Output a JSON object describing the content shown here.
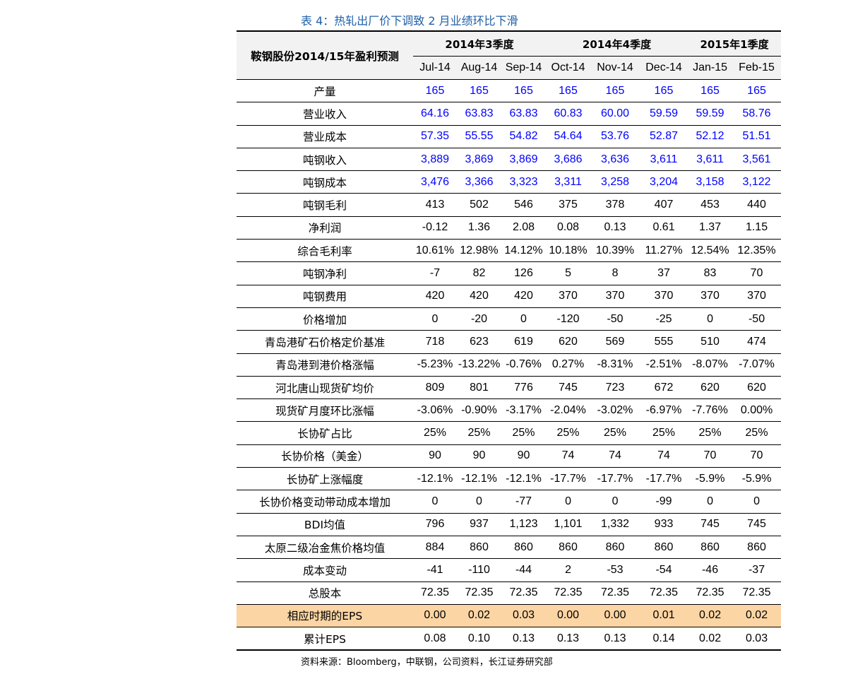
{
  "title": "表 4：热轧出厂价下调致 2 月业绩环比下滑",
  "table": {
    "corner": "鞍钢股份2014/15年盈利预测",
    "groups": [
      "2014年3季度",
      "2014年4季度",
      "2015年1季度"
    ],
    "months": [
      "Jul-14",
      "Aug-14",
      "Sep-14",
      "Oct-14",
      "Nov-14",
      "Dec-14",
      "Jan-15",
      "Feb-15"
    ],
    "rows": [
      {
        "label": "产量",
        "values": [
          "165",
          "165",
          "165",
          "165",
          "165",
          "165",
          "165",
          "165"
        ]
      },
      {
        "label": "营业收入",
        "values": [
          "64.16",
          "63.83",
          "63.83",
          "60.83",
          "60.00",
          "59.59",
          "59.59",
          "58.76"
        ]
      },
      {
        "label": "营业成本",
        "values": [
          "57.35",
          "55.55",
          "54.82",
          "54.64",
          "53.76",
          "52.87",
          "52.12",
          "51.51"
        ]
      },
      {
        "label": "吨钢收入",
        "values": [
          "3,889",
          "3,869",
          "3,869",
          "3,686",
          "3,636",
          "3,611",
          "3,611",
          "3,561"
        ]
      },
      {
        "label": "吨钢成本",
        "values": [
          "3,476",
          "3,366",
          "3,323",
          "3,311",
          "3,258",
          "3,204",
          "3,158",
          "3,122"
        ]
      },
      {
        "label": "吨钢毛利",
        "values": [
          "413",
          "502",
          "546",
          "375",
          "378",
          "407",
          "453",
          "440"
        ]
      },
      {
        "label": "净利润",
        "values": [
          "-0.12",
          "1.36",
          "2.08",
          "0.08",
          "0.13",
          "0.61",
          "1.37",
          "1.15"
        ]
      },
      {
        "label": "综合毛利率",
        "values": [
          "10.61%",
          "12.98%",
          "14.12%",
          "10.18%",
          "10.39%",
          "11.27%",
          "12.54%",
          "12.35%"
        ]
      },
      {
        "label": "吨钢净利",
        "values": [
          "-7",
          "82",
          "126",
          "5",
          "8",
          "37",
          "83",
          "70"
        ]
      },
      {
        "label": "吨钢费用",
        "values": [
          "420",
          "420",
          "420",
          "370",
          "370",
          "370",
          "370",
          "370"
        ]
      },
      {
        "label": "价格增加",
        "values": [
          "0",
          "-20",
          "0",
          "-120",
          "-50",
          "-25",
          "0",
          "-50"
        ]
      },
      {
        "label": "青岛港矿石价格定价基准",
        "values": [
          "718",
          "623",
          "619",
          "620",
          "569",
          "555",
          "510",
          "474"
        ]
      },
      {
        "label": "青岛港到港价格涨幅",
        "values": [
          "-5.23%",
          "-13.22%",
          "-0.76%",
          "0.27%",
          "-8.31%",
          "-2.51%",
          "-8.07%",
          "-7.07%"
        ]
      },
      {
        "label": "河北唐山现货矿均价",
        "values": [
          "809",
          "801",
          "776",
          "745",
          "723",
          "672",
          "620",
          "620"
        ]
      },
      {
        "label": "现货矿月度环比涨幅",
        "values": [
          "-3.06%",
          "-0.90%",
          "-3.17%",
          "-2.04%",
          "-3.02%",
          "-6.97%",
          "-7.76%",
          "0.00%"
        ]
      },
      {
        "label": "长协矿占比",
        "values": [
          "25%",
          "25%",
          "25%",
          "25%",
          "25%",
          "25%",
          "25%",
          "25%"
        ]
      },
      {
        "label": "长协价格（美金）",
        "values": [
          "90",
          "90",
          "90",
          "74",
          "74",
          "74",
          "70",
          "70"
        ]
      },
      {
        "label": "长协矿上涨幅度",
        "values": [
          "-12.1%",
          "-12.1%",
          "-12.1%",
          "-17.7%",
          "-17.7%",
          "-17.7%",
          "-5.9%",
          "-5.9%"
        ]
      },
      {
        "label": "长协价格变动带动成本增加",
        "values": [
          "0",
          "0",
          "-77",
          "0",
          "0",
          "-99",
          "0",
          "0"
        ]
      },
      {
        "label": "BDI均值",
        "values": [
          "796",
          "937",
          "1,123",
          "1,101",
          "1,332",
          "933",
          "745",
          "745"
        ]
      },
      {
        "label": "太原二级冶金焦价格均值",
        "values": [
          "884",
          "860",
          "860",
          "860",
          "860",
          "860",
          "860",
          "860"
        ]
      },
      {
        "label": "成本变动",
        "values": [
          "-41",
          "-110",
          "-44",
          "2",
          "-53",
          "-54",
          "-46",
          "-37"
        ]
      },
      {
        "label": "总股本",
        "values": [
          "72.35",
          "72.35",
          "72.35",
          "72.35",
          "72.35",
          "72.35",
          "72.35",
          "72.35"
        ]
      },
      {
        "label": "相应时期的EPS",
        "values": [
          "0.00",
          "0.02",
          "0.03",
          "0.00",
          "0.00",
          "0.01",
          "0.02",
          "0.02"
        ]
      },
      {
        "label": "累计EPS",
        "values": [
          "0.08",
          "0.10",
          "0.13",
          "0.13",
          "0.13",
          "0.14",
          "0.02",
          "0.03"
        ]
      }
    ],
    "blue_rows": [
      0,
      1,
      2,
      3,
      4
    ],
    "highlight_rows": [
      23
    ]
  },
  "colors": {
    "title": "#1f5fa8",
    "input_values": "#0000ff",
    "highlight_row": "#fcd5a4",
    "header_bg": "#f2f2f2"
  },
  "source": "资料来源：Bloomberg，中联钢，公司资料，长江证券研究部"
}
